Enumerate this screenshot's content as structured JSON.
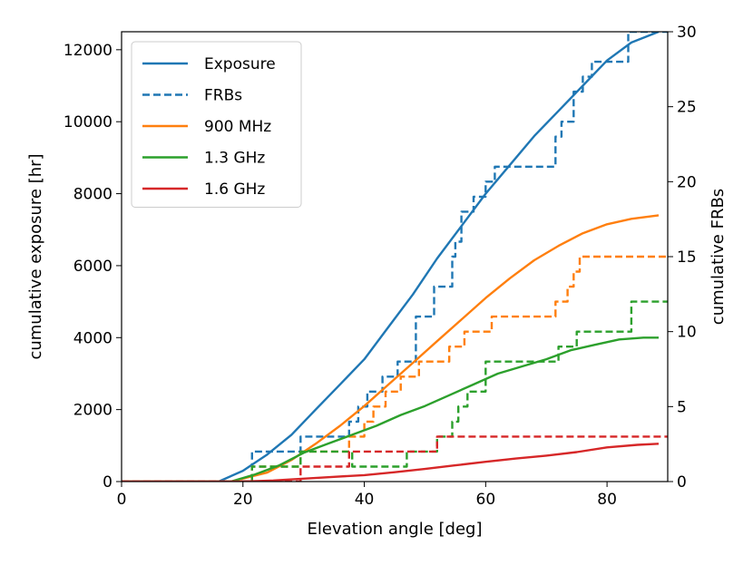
{
  "chart_data": {
    "type": "line",
    "title": "",
    "xlabel": "Elevation angle [deg]",
    "ylabel_left": "cumulative exposure [hr]",
    "ylabel_right": "cumulative FRBs",
    "xlim": [
      0,
      90
    ],
    "ylim_left": [
      0,
      12500
    ],
    "ylim_right": [
      0,
      30
    ],
    "xticks": [
      "0",
      "20",
      "40",
      "60",
      "80"
    ],
    "yticks_left": [
      "0",
      "2000",
      "4000",
      "6000",
      "8000",
      "10000",
      "12000"
    ],
    "yticks_right": [
      "0",
      "5",
      "10",
      "15",
      "20",
      "25",
      "30"
    ],
    "legend_position": "upper-left",
    "series": [
      {
        "name": "Exposure",
        "axis": "left",
        "style": "solid",
        "color": "#1f77b4",
        "in_legend": true,
        "x": [
          0,
          16,
          20,
          24,
          28,
          32,
          36,
          40,
          44,
          48,
          52,
          56,
          60,
          64,
          68,
          72,
          76,
          80,
          84,
          88.5
        ],
        "y": [
          0,
          0,
          300,
          750,
          1300,
          2000,
          2700,
          3400,
          4300,
          5200,
          6200,
          7100,
          8000,
          8800,
          9600,
          10300,
          11000,
          11700,
          12200,
          12500
        ]
      },
      {
        "name": "FRBs",
        "axis": "right",
        "style": "dashed",
        "color": "#1f77b4",
        "in_legend": true,
        "x": [
          0,
          21.5,
          29.5,
          37.5,
          39,
          40.5,
          43,
          45.5,
          48.5,
          51.5,
          54.5,
          55,
          56,
          58,
          60,
          61.5,
          71.5,
          72.5,
          74.5,
          76,
          77.5,
          80.5,
          83.5,
          90
        ],
        "y": [
          0,
          2,
          3,
          4,
          5,
          6,
          7,
          8,
          11,
          13,
          15,
          16,
          18,
          19,
          20,
          21,
          23,
          24,
          26,
          27,
          28,
          28,
          30,
          30
        ]
      },
      {
        "name": "900 MHz",
        "axis": "left",
        "style": "solid",
        "color": "#ff7f0e",
        "in_legend": true,
        "x": [
          0,
          18,
          24,
          28,
          32,
          36,
          40,
          44,
          48,
          52,
          56,
          60,
          64,
          68,
          72,
          76,
          80,
          84,
          88.5
        ],
        "y": [
          0,
          0,
          250,
          600,
          1050,
          1550,
          2100,
          2700,
          3300,
          3900,
          4500,
          5100,
          5650,
          6150,
          6550,
          6900,
          7150,
          7300,
          7400
        ]
      },
      {
        "name": "900 MHz FRBs",
        "axis": "right",
        "style": "dashed",
        "color": "#ff7f0e",
        "in_legend": false,
        "x": [
          0,
          21.5,
          29.5,
          37.5,
          40,
          41.5,
          43.5,
          46,
          49,
          54,
          56.5,
          58,
          61,
          71.5,
          73.5,
          74.5,
          75.5,
          77.5,
          90
        ],
        "y": [
          0,
          1,
          2,
          3,
          4,
          5,
          6,
          7,
          8,
          9,
          10,
          10,
          11,
          12,
          13,
          14,
          15,
          15,
          15
        ]
      },
      {
        "name": "1.3 GHz",
        "axis": "left",
        "style": "solid",
        "color": "#2ca02c",
        "in_legend": true,
        "x": [
          0,
          18,
          22,
          26,
          30,
          34,
          38,
          42,
          46,
          50,
          54,
          58,
          62,
          66,
          70,
          74,
          78,
          82,
          86,
          88.5
        ],
        "y": [
          0,
          0,
          200,
          450,
          800,
          1050,
          1300,
          1550,
          1850,
          2100,
          2400,
          2700,
          3000,
          3200,
          3400,
          3650,
          3800,
          3950,
          4000,
          4000
        ]
      },
      {
        "name": "1.3 GHz FRBs",
        "axis": "right",
        "style": "dashed",
        "color": "#2ca02c",
        "in_legend": false,
        "x": [
          0,
          21.5,
          29.5,
          38,
          47,
          52,
          54.5,
          55.5,
          57,
          60,
          72,
          75,
          84,
          90
        ],
        "y": [
          0,
          1,
          2,
          1,
          2,
          3,
          4,
          5,
          6,
          8,
          9,
          10,
          12,
          12
        ]
      },
      {
        "name": "1.6 GHz",
        "axis": "left",
        "style": "solid",
        "color": "#d62728",
        "in_legend": true,
        "x": [
          0,
          20,
          25,
          30,
          35,
          40,
          45,
          50,
          55,
          60,
          65,
          70,
          75,
          80,
          85,
          88.5
        ],
        "y": [
          0,
          0,
          30,
          80,
          130,
          180,
          260,
          350,
          450,
          550,
          640,
          720,
          820,
          950,
          1020,
          1050
        ]
      },
      {
        "name": "1.6 GHz FRBs",
        "axis": "right",
        "style": "dashed",
        "color": "#d62728",
        "in_legend": false,
        "x": [
          0,
          29.5,
          37.5,
          43.5,
          52,
          90
        ],
        "y": [
          0,
          1,
          2,
          2,
          3,
          3
        ]
      }
    ]
  }
}
